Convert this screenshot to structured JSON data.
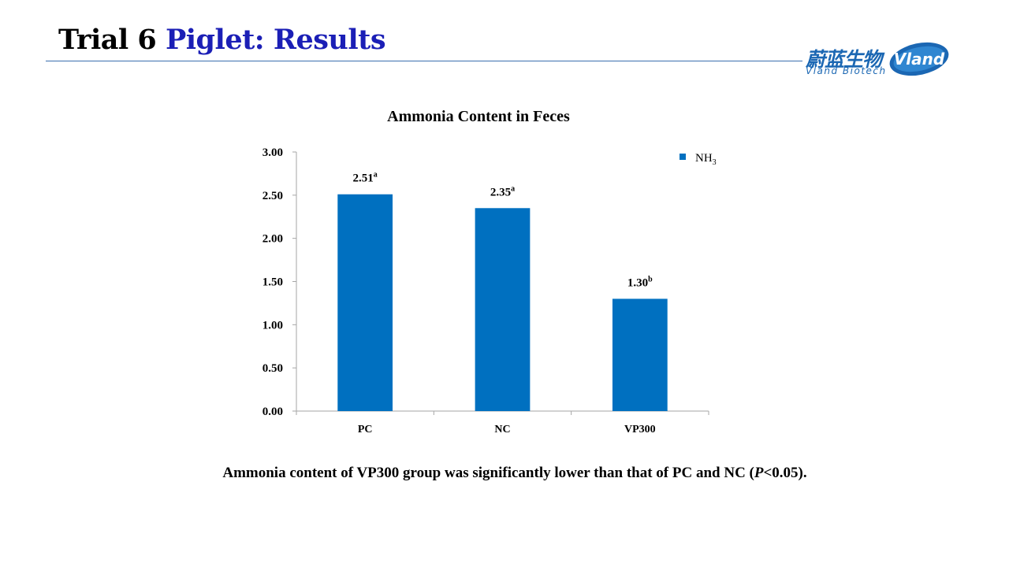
{
  "slide": {
    "title_prefix": "Trial 6 ",
    "title_accent": "Piglet: Results",
    "caption_pre": "Ammonia content of VP300 group was significantly lower than that of PC and NC (",
    "caption_p": "P",
    "caption_post": "<0.05)."
  },
  "logo": {
    "cn_text": "蔚蓝生物",
    "en_text": "Vland  Biotech",
    "badge_text": "Vland"
  },
  "colors": {
    "bar": "#0070c0",
    "title_accent": "#1b1fb6",
    "logo_blue": "#1b67b3"
  },
  "chart_data": {
    "type": "bar",
    "title": "Ammonia Content in Feces",
    "categories": [
      "PC",
      "NC",
      "VP300"
    ],
    "series": [
      {
        "name": "NH3",
        "values": [
          2.51,
          2.35,
          1.3
        ],
        "labels": [
          "2.51",
          "2.35",
          "1.30"
        ],
        "superscripts": [
          "a",
          "a",
          "b"
        ]
      }
    ],
    "ylim": [
      0,
      3
    ],
    "yticks": [
      0,
      0.5,
      1,
      1.5,
      2,
      2.5,
      3
    ],
    "ytick_labels": [
      "0.00",
      "0.50",
      "1.00",
      "1.50",
      "2.00",
      "2.50",
      "3.00"
    ],
    "xlabel": "",
    "ylabel": "",
    "grid": false,
    "legend": {
      "position": "top-right",
      "label_main": "NH",
      "label_sub": "3"
    }
  }
}
